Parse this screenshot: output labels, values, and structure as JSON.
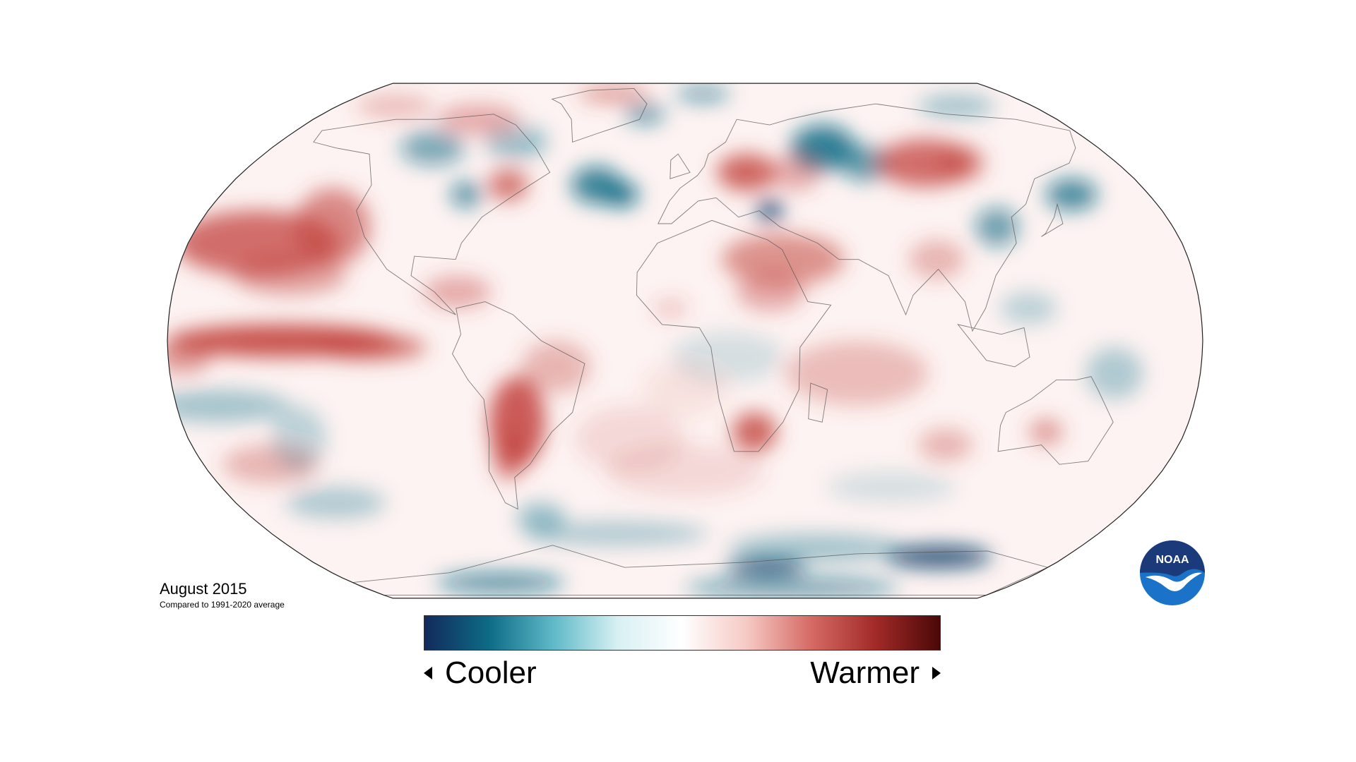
{
  "caption": {
    "title": "August 2015",
    "subtitle": "Compared to 1991-2020 average"
  },
  "legend": {
    "cooler_label": "Cooler",
    "warmer_label": "Warmer",
    "colors": [
      "#122a5c",
      "#0d6b86",
      "#5fb9c8",
      "#d8f0f3",
      "#ffffff",
      "#f6c9c4",
      "#d66a64",
      "#a22a28",
      "#4b0808"
    ]
  },
  "logo": {
    "text": "NOAA"
  },
  "map": {
    "projection": "Robinson",
    "background_color": "#ffffff",
    "cool_color": "#0d6b86",
    "deep_cool_color": "#123e6a",
    "warm_color": "#c2413c"
  }
}
